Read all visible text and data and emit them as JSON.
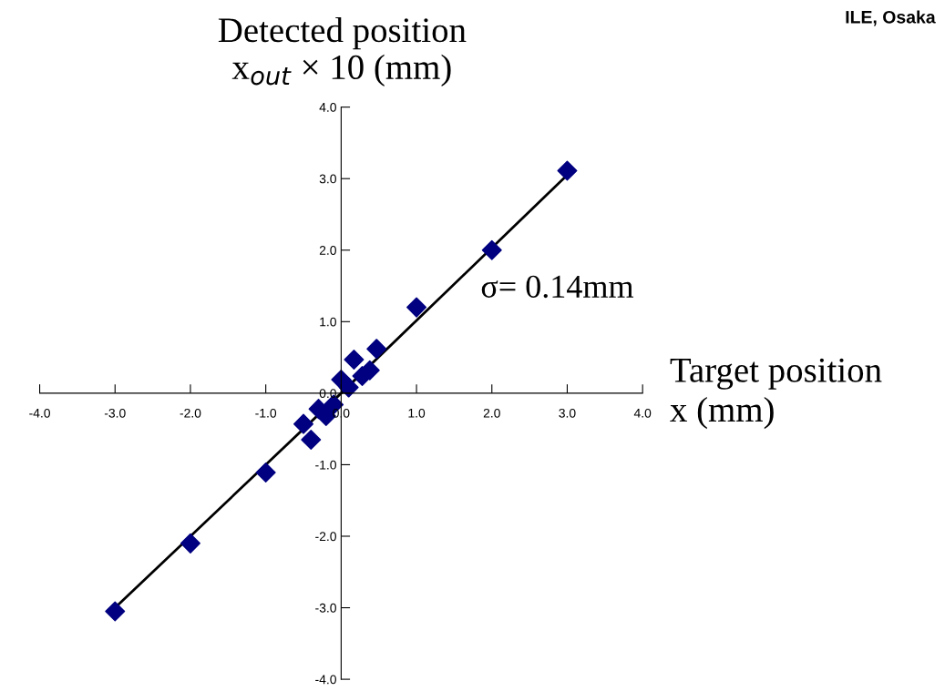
{
  "chart_data": {
    "type": "scatter",
    "xlabel": "Target position\nx (mm)",
    "ylabel": "Detected position\nx$_{out}$ × 10 (mm)",
    "annotations": [
      "σ= 0.14mm",
      "ILE, Osaka"
    ],
    "xlim": [
      -4.0,
      4.0
    ],
    "ylim": [
      -4.0,
      4.0
    ],
    "xticks": [
      {
        "value": -4,
        "label": "-4.0"
      },
      {
        "value": -3,
        "label": "-3.0"
      },
      {
        "value": -2,
        "label": "-2.0"
      },
      {
        "value": -1,
        "label": "-1.0"
      },
      {
        "value": 0,
        "label": "0.0"
      },
      {
        "value": 1,
        "label": "1.0"
      },
      {
        "value": 2,
        "label": "2.0"
      },
      {
        "value": 3,
        "label": "3.0"
      },
      {
        "value": 4,
        "label": "4.0"
      }
    ],
    "yticks": [
      {
        "value": -4,
        "label": "-4.0"
      },
      {
        "value": -3,
        "label": "-3.0"
      },
      {
        "value": -2,
        "label": "-2.0"
      },
      {
        "value": -1,
        "label": "-1.0"
      },
      {
        "value": 0,
        "label": "0.0"
      },
      {
        "value": 1,
        "label": "1.0"
      },
      {
        "value": 2,
        "label": "2.0"
      },
      {
        "value": 3,
        "label": "3.0"
      },
      {
        "value": 4,
        "label": "4.0"
      }
    ],
    "grid": false,
    "legend": false,
    "marker": "diamond",
    "series": [
      {
        "color": "#000080",
        "x": [
          -3.0,
          -2.0,
          -1.0,
          -0.5,
          -0.4,
          -0.3,
          -0.2,
          -0.1,
          0.0,
          0.1,
          0.17,
          0.28,
          0.38,
          0.47,
          1.0,
          2.0,
          3.0
        ],
        "values": [
          -3.05,
          -2.1,
          -1.11,
          -0.43,
          -0.65,
          -0.22,
          -0.32,
          -0.16,
          0.19,
          0.08,
          0.47,
          0.24,
          0.32,
          0.62,
          1.2,
          2.0,
          3.11
        ]
      },
      {
        "type": "line",
        "color": "#000000",
        "marker": "none",
        "line_style": "solid",
        "x": [
          -3.0,
          0.0,
          3.0
        ],
        "values": [
          -3.0,
          0.0,
          3.05
        ]
      }
    ]
  }
}
